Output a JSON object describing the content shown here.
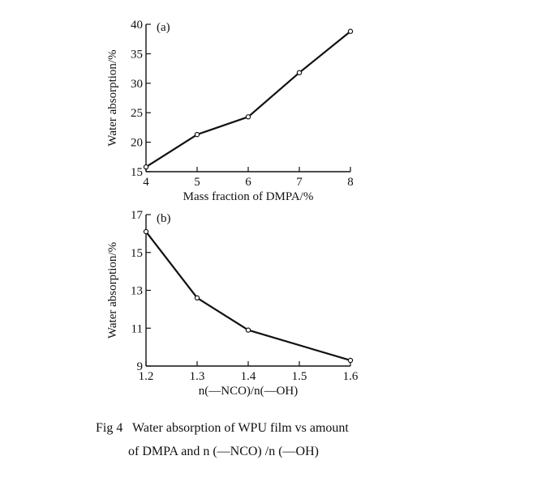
{
  "chart_data": [
    {
      "type": "line",
      "panel_label": "(a)",
      "xlabel": "Mass fraction of DMPA/%",
      "ylabel": "Water absorption/%",
      "x": [
        4,
        5,
        6,
        7,
        8
      ],
      "y": [
        15.8,
        21.3,
        24.3,
        31.8,
        38.8
      ],
      "xlim": [
        4,
        8
      ],
      "ylim": [
        15,
        40
      ],
      "xticks": [
        "4",
        "5",
        "6",
        "7",
        "8"
      ],
      "yticks": [
        "15",
        "20",
        "25",
        "30",
        "35",
        "40"
      ],
      "marker": "open-circle",
      "grid": false
    },
    {
      "type": "line",
      "panel_label": "(b)",
      "xlabel": "n(—NCO)/n(—OH)",
      "ylabel": "Water absorption/%",
      "x": [
        1.2,
        1.3,
        1.4,
        1.6
      ],
      "y": [
        16.1,
        12.6,
        10.9,
        9.3
      ],
      "xlim": [
        1.2,
        1.6
      ],
      "ylim": [
        9,
        17
      ],
      "xticks": [
        "1.2",
        "1.3",
        "1.4",
        "1.5",
        "1.6"
      ],
      "yticks": [
        "9",
        "11",
        "13",
        "15",
        "17"
      ],
      "marker": "open-circle",
      "grid": false
    }
  ],
  "caption": {
    "line1": "Fig 4   Water absorption of WPU film vs amount",
    "line2": "of DMPA and n (—NCO) /n (—OH)"
  }
}
